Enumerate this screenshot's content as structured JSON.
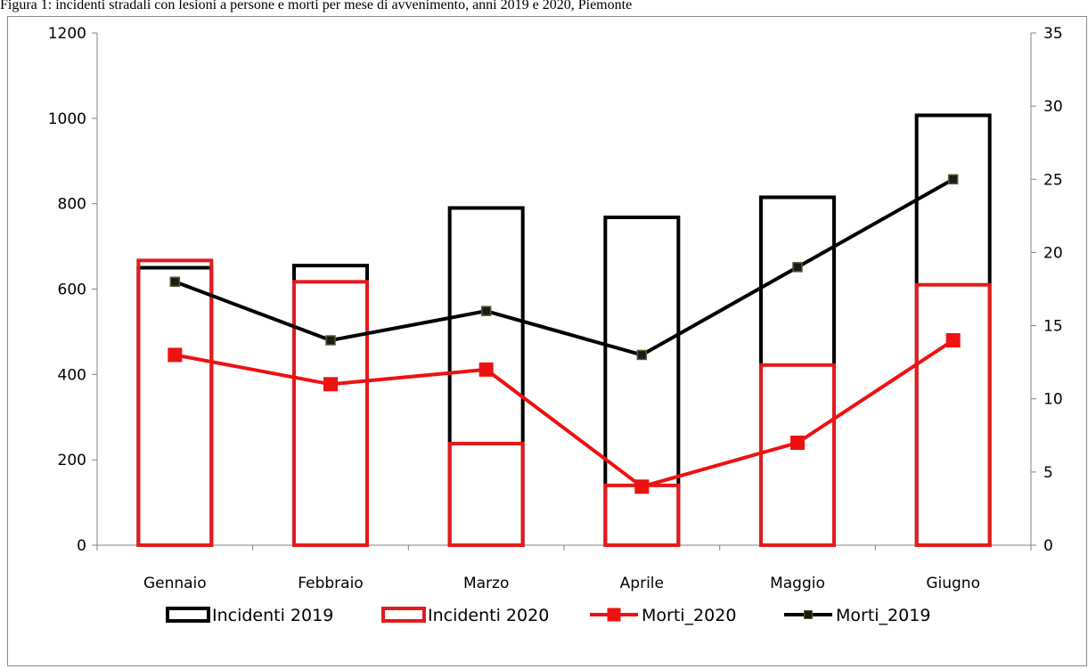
{
  "caption": "Figura 1: incidenti stradali con lesioni a persone e morti per mese di avvenimento, anni 2019 e 2020, Piemonte",
  "chart_data": {
    "type": "bar",
    "categories": [
      "Gennaio",
      "Febbraio",
      "Marzo",
      "Aprile",
      "Maggio",
      "Giugno"
    ],
    "left_axis": {
      "min": 0,
      "max": 1200,
      "step": 200
    },
    "right_axis": {
      "min": 0,
      "max": 35,
      "step": 5
    },
    "series": [
      {
        "name": "Incidenti 2019",
        "kind": "bar",
        "axis": "left",
        "color": "#000000",
        "values": [
          650,
          655,
          790,
          768,
          815,
          1007
        ]
      },
      {
        "name": "Incidenti 2020",
        "kind": "bar",
        "axis": "left",
        "color": "#e41a1c",
        "values": [
          667,
          617,
          238,
          140,
          422,
          610
        ]
      },
      {
        "name": "Morti_2020",
        "kind": "line",
        "axis": "right",
        "color": "#ee1111",
        "marker": "square",
        "values": [
          13,
          11,
          12,
          4,
          7,
          14
        ]
      },
      {
        "name": "Morti_2019",
        "kind": "line",
        "axis": "right",
        "color": "#000000",
        "marker": "square",
        "values": [
          18,
          14,
          16,
          13,
          19,
          25
        ]
      }
    ],
    "legend_position": "bottom",
    "grid": false
  }
}
